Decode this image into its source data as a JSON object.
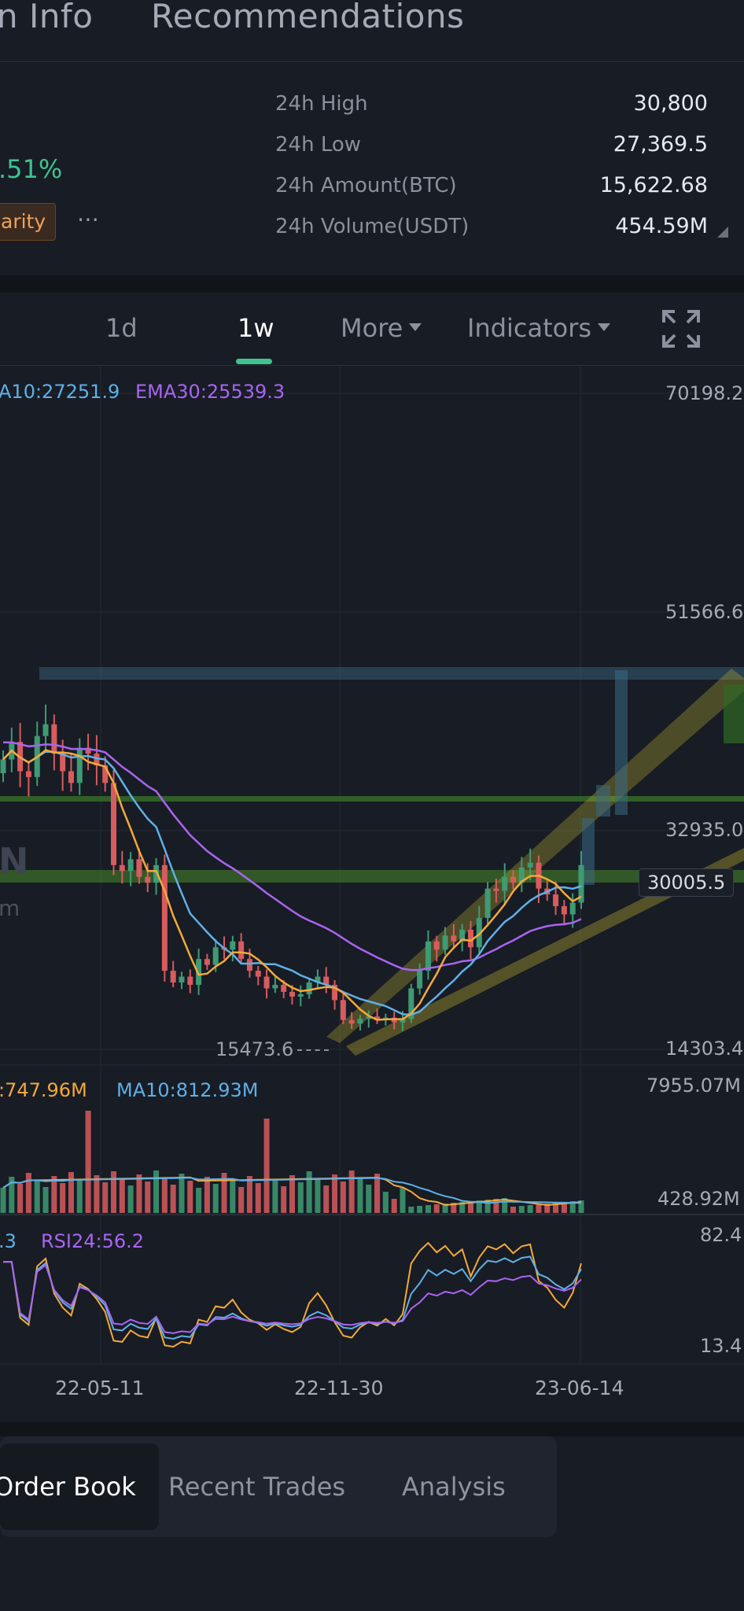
{
  "tabs": [
    {
      "label": "n Info"
    },
    {
      "label": "Recommendations"
    }
  ],
  "summary": {
    "change": ".51%",
    "tag": "arity",
    "more": "⋯"
  },
  "stats": [
    {
      "label": "24h High",
      "value": "30,800"
    },
    {
      "label": "24h Low",
      "value": "27,369.5"
    },
    {
      "label": "24h Amount(BTC)",
      "value": "15,622.68"
    },
    {
      "label": "24h Volume(USDT)",
      "value": "454.59M"
    }
  ],
  "intervals": {
    "d1": "1d",
    "w1": "1w",
    "more": "More",
    "indicators": "Indicators"
  },
  "colors": {
    "up": "#3e9b74",
    "down": "#d75c5e",
    "ma_yellow": "#f3a93b",
    "ma_blue": "#5fb0e6",
    "ema_purple": "#a865f0",
    "accent_green": "#3ec48e"
  },
  "price_chart": {
    "legend": [
      {
        "text": "A10:27251.9",
        "color": "#5fb0e6"
      },
      {
        "text": "EMA30:25539.3",
        "color": "#a865f0"
      }
    ],
    "y_labels": [
      "70198.2",
      "51566.6",
      "32935.0",
      "14303.4"
    ],
    "current_price": "30005.5",
    "low_marker": "15473.6",
    "watermark_a": "N",
    "watermark_b": "m"
  },
  "volume_chart": {
    "legend": [
      {
        "text": ":747.96M",
        "color": "#f3a93b"
      },
      {
        "text": "MA10:812.93M",
        "color": "#5fb0e6"
      }
    ],
    "y_labels": [
      "7955.07M",
      "428.92M"
    ]
  },
  "rsi_chart": {
    "legend": [
      {
        "text": ".3",
        "color": "#5fb0e6"
      },
      {
        "text": "RSI24:56.2",
        "color": "#a865f0"
      }
    ],
    "y_labels": [
      "82.4",
      "13.4"
    ]
  },
  "x_labels": [
    "22-05-11",
    "22-11-30",
    "23-06-14"
  ],
  "bottom_tabs": [
    {
      "label": "Order Book"
    },
    {
      "label": "Recent Trades"
    },
    {
      "label": "Analysis"
    }
  ],
  "chart_data": {
    "type": "candlestick",
    "interval": "1w",
    "ylim": [
      14303.4,
      70198.2
    ],
    "x_ticks": [
      "22-05-11",
      "22-11-30",
      "23-06-14"
    ],
    "series": [
      {
        "name": "A10",
        "last": 27251.9
      },
      {
        "name": "EMA30",
        "last": 25539.3
      }
    ],
    "candles_close": [
      39000,
      40500,
      38000,
      37500,
      41000,
      42000,
      39500,
      38000,
      37000,
      40000,
      39500,
      38500,
      37000,
      30000,
      29500,
      30500,
      29000,
      28500,
      30000,
      21000,
      20000,
      20500,
      19800,
      22000,
      21500,
      23000,
      22800,
      23500,
      22000,
      21000,
      20500,
      19500,
      19800,
      19200,
      18800,
      19000,
      20000,
      20500,
      19800,
      18500,
      16800,
      16500,
      16900,
      17100,
      16800,
      17000,
      16600,
      16900,
      19500,
      21000,
      23500,
      22800,
      24000,
      23500,
      24500,
      23000,
      25500,
      28000,
      27800,
      29000,
      28500,
      29800,
      30200,
      28000,
      27500,
      26500,
      25800,
      26800,
      30005.5
    ],
    "volume": {
      "ylim": [
        428.92,
        7955.07
      ],
      "legend_values": {
        "MA5": 747.96,
        "MA10": 812.93
      }
    },
    "rsi": {
      "ylim": [
        13.4,
        82.4
      ],
      "legend_values": {
        "RSI24": 56.2
      }
    }
  }
}
